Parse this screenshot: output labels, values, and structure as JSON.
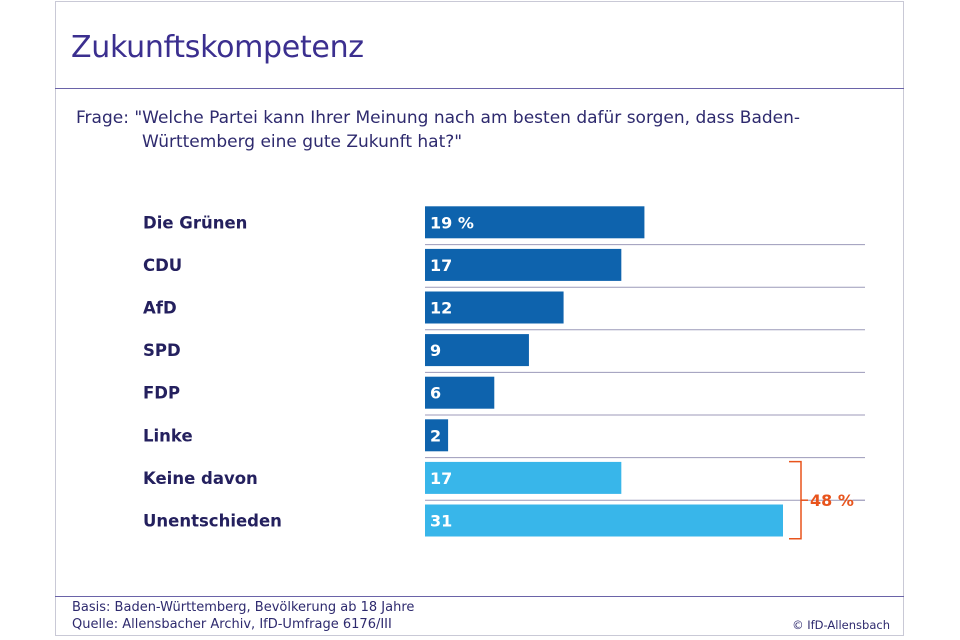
{
  "title": "Zukunftskompetenz",
  "question": {
    "prefix": "Frage:",
    "line1": "\"Welche Partei kann Ihrer Meinung nach am besten dafür sorgen, dass Baden-",
    "line2": "Württemberg eine gute Zukunft hat?\""
  },
  "chart_data": {
    "type": "bar",
    "orientation": "horizontal",
    "categories": [
      "Die Grünen",
      "CDU",
      "AfD",
      "SPD",
      "FDP",
      "Linke",
      "Keine davon",
      "Unentschieden"
    ],
    "values": [
      19,
      17,
      12,
      9,
      6,
      2,
      17,
      31
    ],
    "value_labels": [
      "19 %",
      "17",
      "12",
      "9",
      "6",
      "2",
      "17",
      "31"
    ],
    "unit": "%",
    "xlim": [
      0,
      31
    ],
    "colors": {
      "party": "#0e63ad",
      "other": "#38b6ea",
      "grid": "#9c9ab9",
      "bracket": "#e8541c"
    },
    "highlight": {
      "categories": [
        "Keine davon",
        "Unentschieden"
      ],
      "label": "48 %"
    }
  },
  "footer": {
    "basis": "Basis: Baden-Württemberg, Bevölkerung ab 18 Jahre",
    "source": "Quelle: Allensbacher Archiv, IfD-Umfrage 6176/III",
    "copyright": "© IfD-Allensbach"
  }
}
